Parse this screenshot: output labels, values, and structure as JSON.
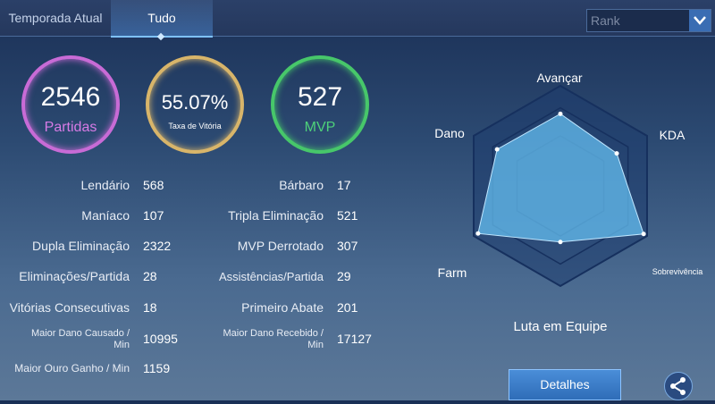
{
  "tabs": [
    {
      "label": "Temporada Atual"
    },
    {
      "label": "Tudo"
    }
  ],
  "rank_select": {
    "value": "Rank"
  },
  "summary": {
    "matches": {
      "value": "2546",
      "label": "Partidas"
    },
    "winrate": {
      "value": "55.07%",
      "label": "Taxa de Vitória"
    },
    "mvp": {
      "value": "527",
      "label": "MVP"
    }
  },
  "stats_left": [
    {
      "label": "Lendário",
      "value": "568"
    },
    {
      "label": "Maníaco",
      "value": "107"
    },
    {
      "label": "Dupla Eliminação",
      "value": "2322"
    },
    {
      "label": "Eliminações/Partida",
      "value": "28"
    },
    {
      "label": "Vitórias Consecutivas",
      "value": "18"
    },
    {
      "label": "Maior Dano Causado / Min",
      "value": "10995"
    },
    {
      "label": "Maior Ouro Ganho / Min",
      "value": "1159"
    }
  ],
  "stats_right": [
    {
      "label": "Bárbaro",
      "value": "17"
    },
    {
      "label": "Tripla Eliminação",
      "value": "521"
    },
    {
      "label": "MVP Derrotado",
      "value": "307"
    },
    {
      "label": "Assistências/Partida",
      "value": "29"
    },
    {
      "label": "Primeiro Abate",
      "value": "201"
    },
    {
      "label": "Maior Dano Recebido / Min",
      "value": "17127"
    }
  ],
  "radar": {
    "axes": [
      "Avançar",
      "KDA",
      "Sobrevivência",
      "Luta em Equipe",
      "Farm",
      "Dano"
    ],
    "values": [
      0.72,
      0.65,
      0.96,
      0.56,
      0.95,
      0.73
    ]
  },
  "buttons": {
    "details": "Detalhes"
  },
  "colors": {
    "matches": "#c86bd6",
    "winrate": "#d8b56a",
    "mvp": "#47c76a",
    "accent": "#3a6db3"
  }
}
